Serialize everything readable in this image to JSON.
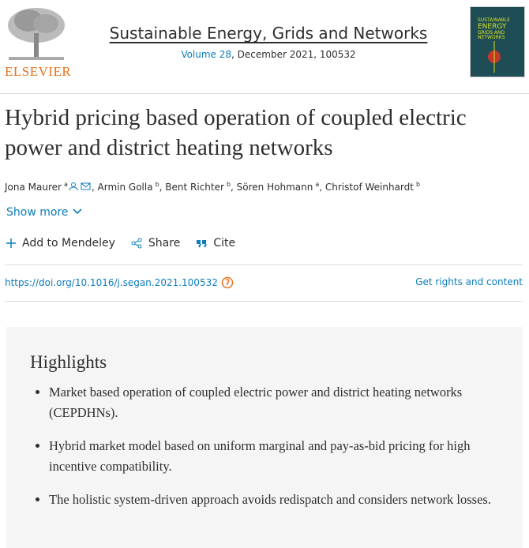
{
  "journal": {
    "name": "Sustainable Energy, Grids and Networks",
    "volume": "Volume 28",
    "details": ", December 2021, 100532",
    "publisher": "ELSEVIER",
    "cover_text": [
      "SUSTAINABLE",
      "ENERGY",
      "GRIDS AND",
      "NETWORKS"
    ]
  },
  "title": "Hybrid pricing based operation of coupled electric power and district heating networks",
  "authors": [
    {
      "name": "Jona Maurer",
      "sup": "a"
    },
    {
      "name": "Armin Golla",
      "sup": "b"
    },
    {
      "name": "Bent Richter",
      "sup": "b"
    },
    {
      "name": "Sören Hohmann",
      "sup": "a"
    },
    {
      "name": "Christof Weinhardt",
      "sup": "b"
    }
  ],
  "author_separator": ",",
  "show_more": "Show more",
  "actions": [
    "Add to Mendeley",
    "Share",
    "Cite"
  ],
  "doi": "https://doi.org/10.1016/j.segan.2021.100532",
  "rights": "Get rights and content",
  "highlights": {
    "heading": "Highlights",
    "items": [
      "Market based operation of coupled electric power and district heating networks (CEPDHNs).",
      "Hybrid market model based on uniform marginal and pay-as-bid pricing for high incentive compatibility.",
      "The holistic system-driven approach avoids redispatch and considers network losses."
    ]
  }
}
